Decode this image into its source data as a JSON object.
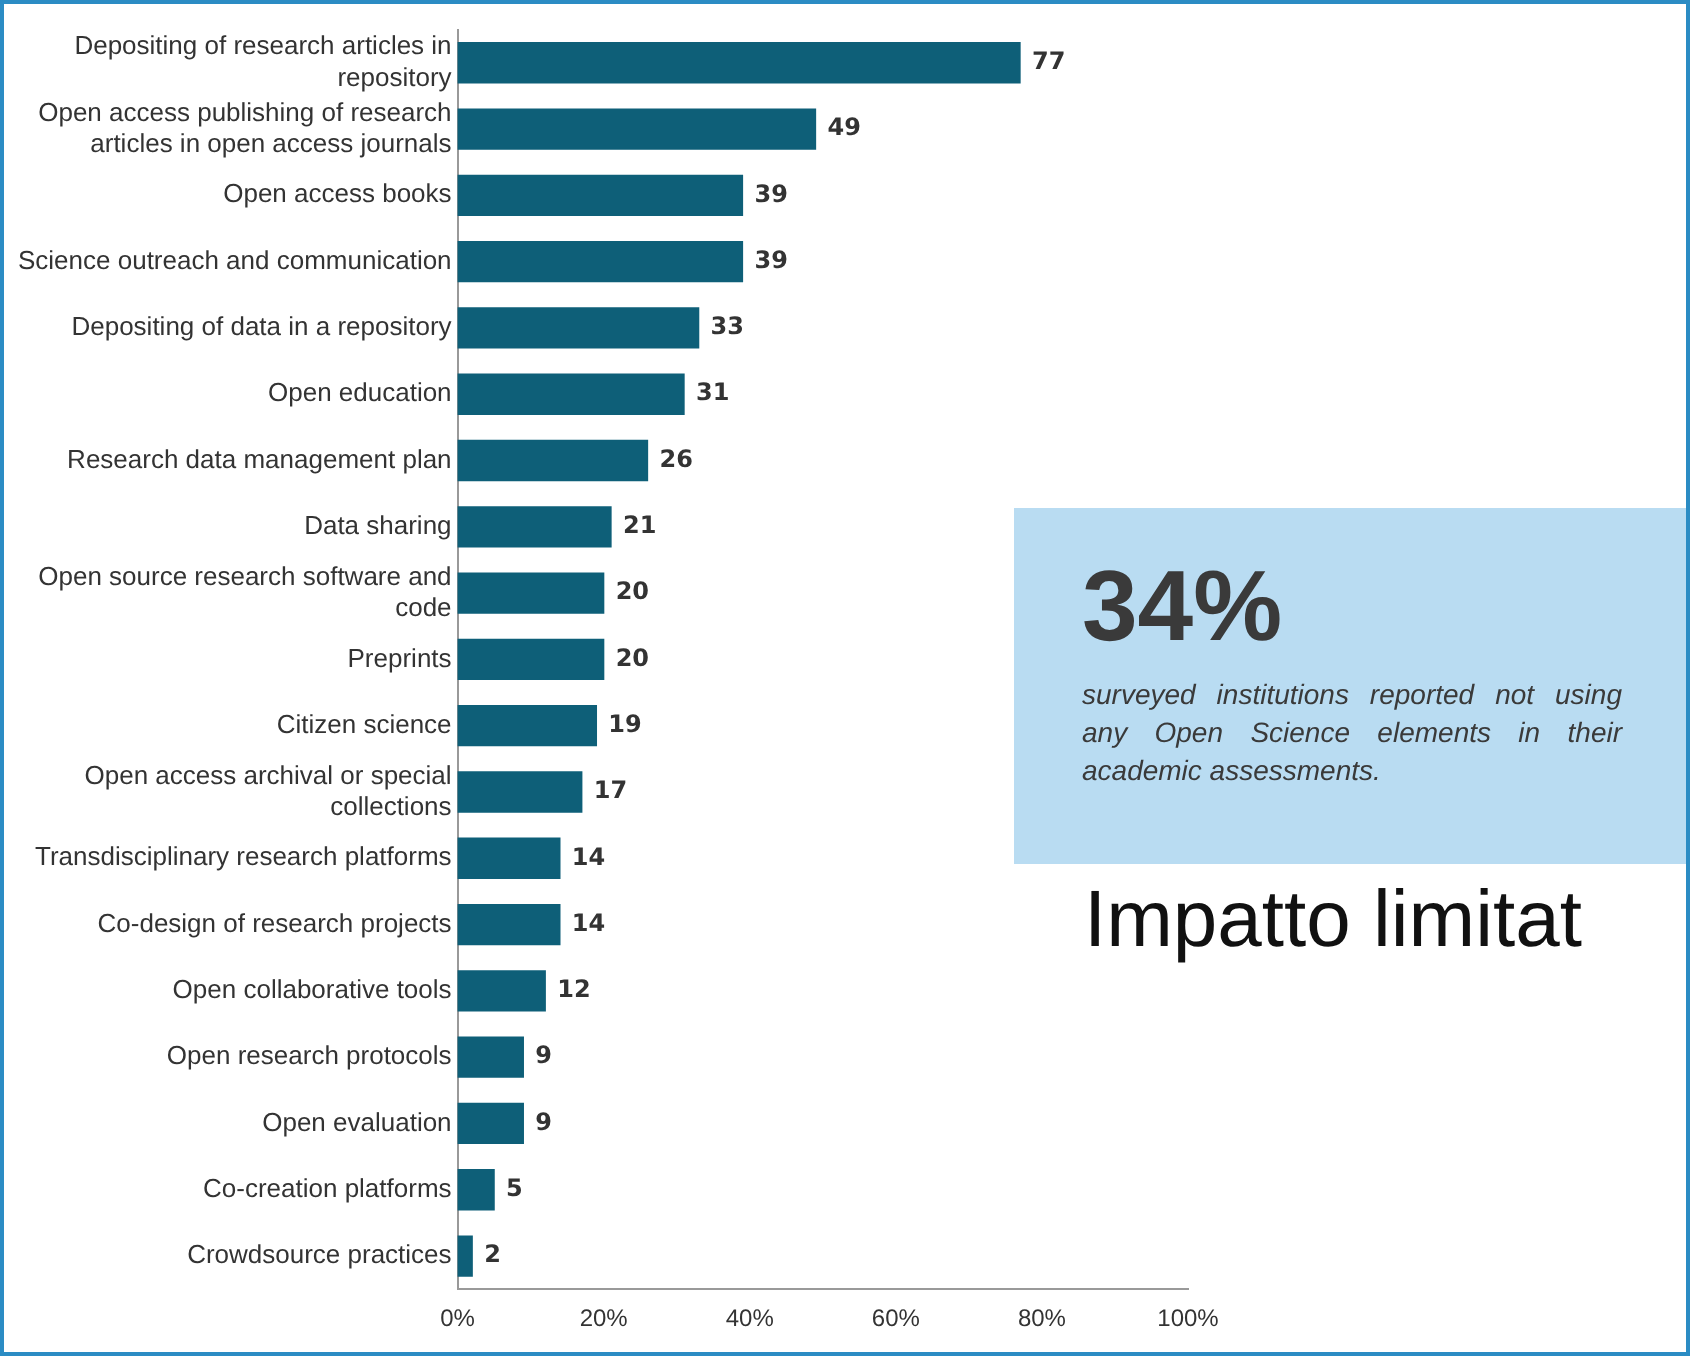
{
  "chart_data": {
    "type": "bar",
    "orientation": "horizontal",
    "categories": [
      "Depositing of research articles in repository",
      "Open access publishing of research articles in open access journals",
      "Open access books",
      "Science outreach and communication",
      "Depositing of data in a repository",
      "Open education",
      "Research data management plan",
      "Data sharing",
      "Open source research software and code",
      "Preprints",
      "Citizen science",
      "Open access archival or special collections",
      "Transdisciplinary research platforms",
      "Co-design of research projects",
      "Open collaborative tools",
      "Open research protocols",
      "Open evaluation",
      "Co-creation platforms",
      "Crowdsource practices"
    ],
    "values": [
      77,
      49,
      39,
      39,
      33,
      31,
      26,
      21,
      20,
      20,
      19,
      17,
      14,
      14,
      12,
      9,
      9,
      5,
      2
    ],
    "color": "#0e5f78",
    "data_labels": true,
    "grid": false,
    "legend": false,
    "xlim": [
      0,
      100
    ],
    "xticks": [
      {
        "value": 0,
        "label": "0%"
      },
      {
        "value": 20,
        "label": "20%"
      },
      {
        "value": 40,
        "label": "40%"
      },
      {
        "value": 60,
        "label": "60%"
      },
      {
        "value": 80,
        "label": "80%"
      },
      {
        "value": 100,
        "label": "100%"
      }
    ],
    "annotations": [
      "34%",
      "surveyed institutions reported not using any Open Science elements in their academic assessments.",
      "Impatto limitat"
    ]
  }
}
